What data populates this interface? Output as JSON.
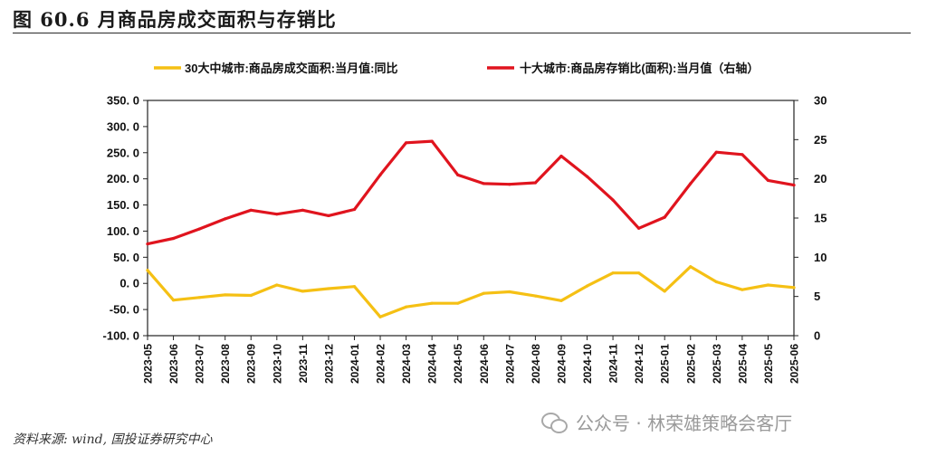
{
  "title": "图 60.6 月商品房成交面积与存销比",
  "source": "资料来源: wind, 国投证券研究中心",
  "watermark": "公众号 · 林荣雄策略会客厅",
  "watermark_icon": "wechat-icon",
  "chart_data": {
    "type": "line",
    "categories": [
      "2023-05",
      "2023-06",
      "2023-07",
      "2023-08",
      "2023-09",
      "2023-10",
      "2023-11",
      "2023-12",
      "2024-01",
      "2024-02",
      "2024-03",
      "2024-04",
      "2024-05",
      "2024-06",
      "2024-07",
      "2024-08",
      "2024-09",
      "2024-10",
      "2024-11",
      "2024-12",
      "2025-01",
      "2025-02",
      "2025-03",
      "2025-04",
      "2025-05",
      "2025-06"
    ],
    "series": [
      {
        "name": "30大中城市:商品房成交面积:当月值:同比",
        "axis": "left",
        "color": "#F5C014",
        "values": [
          25,
          -32,
          -27,
          -22,
          -23,
          -3,
          -15,
          -10,
          -6,
          -64,
          -45,
          -38,
          -38,
          -19,
          -16,
          -24,
          -33,
          -5,
          20,
          20,
          -15,
          32,
          3,
          -12,
          -3,
          -8
        ]
      },
      {
        "name": "十大城市:商品房存销比(面积):当月值（右轴）",
        "axis": "right",
        "color": "#E0141E",
        "values": [
          11.7,
          12.4,
          13.6,
          14.9,
          16.0,
          15.5,
          16.0,
          15.3,
          16.1,
          20.5,
          24.6,
          24.8,
          20.5,
          19.4,
          19.3,
          19.5,
          22.9,
          20.3,
          17.3,
          13.7,
          15.1,
          19.4,
          23.4,
          23.1,
          19.8,
          19.2
        ]
      }
    ],
    "y_left": {
      "min": -100,
      "max": 350,
      "step": 50,
      "tick_labels": [
        "-100. 0",
        "-50. 0",
        "0. 0",
        "50. 0",
        "100. 0",
        "150. 0",
        "200. 0",
        "250. 0",
        "300. 0",
        "350. 0"
      ]
    },
    "y_right": {
      "min": 0,
      "max": 30,
      "step": 5,
      "tick_labels": [
        "0",
        "5",
        "10",
        "15",
        "20",
        "25",
        "30"
      ]
    },
    "grid": false,
    "legend_position": "top"
  }
}
